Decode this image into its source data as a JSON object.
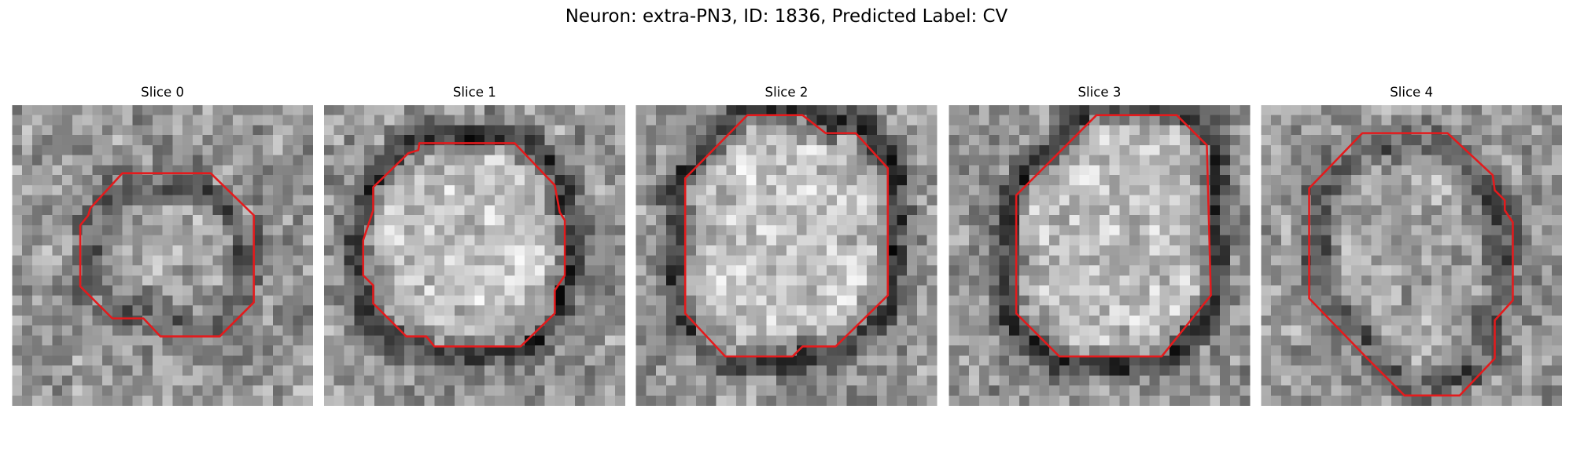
{
  "header": {
    "title": "Neuron: extra-PN3, ID: 1836, Predicted Label: CV"
  },
  "panels": [
    {
      "title": "Slice 0"
    },
    {
      "title": "Slice 1"
    },
    {
      "title": "Slice 2"
    },
    {
      "title": "Slice 3"
    },
    {
      "title": "Slice 4"
    }
  ]
}
